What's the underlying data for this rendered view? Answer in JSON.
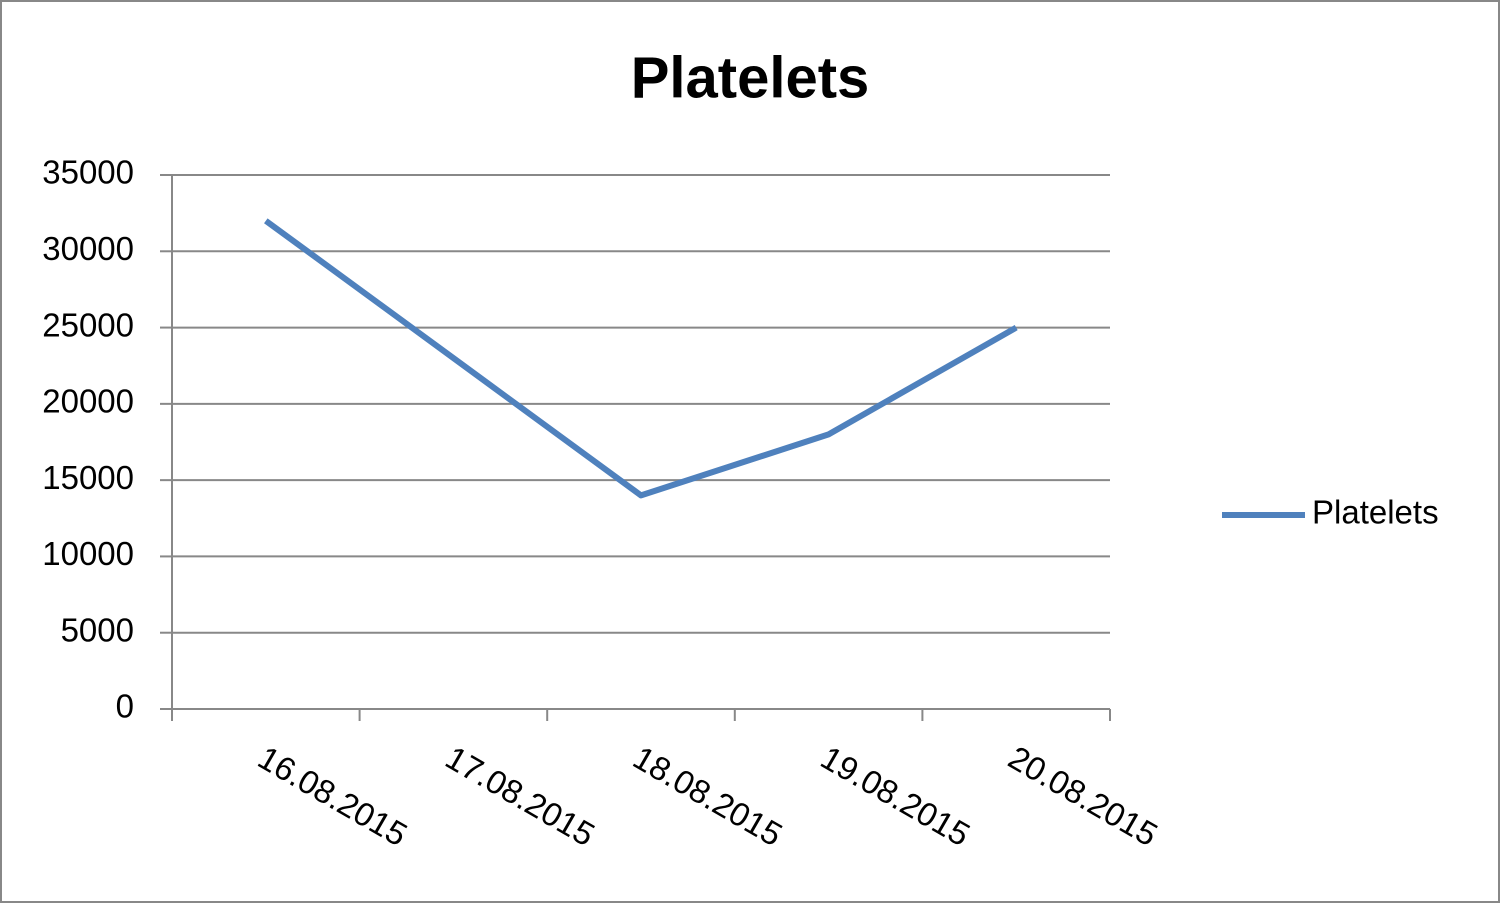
{
  "chart_data": {
    "type": "line",
    "title": "Platelets",
    "categories": [
      "16.08.2015",
      "17.08.2015",
      "18.08.2015",
      "19.08.2015",
      "20.08.2015"
    ],
    "series": [
      {
        "name": "Platelets",
        "color": "#4f81bd",
        "values": [
          32000,
          23000,
          14000,
          18000,
          25000
        ]
      }
    ],
    "ylim": [
      0,
      35000
    ],
    "yticks": [
      0,
      5000,
      10000,
      15000,
      20000,
      25000,
      30000,
      35000
    ],
    "grid": true,
    "legend": "right"
  }
}
